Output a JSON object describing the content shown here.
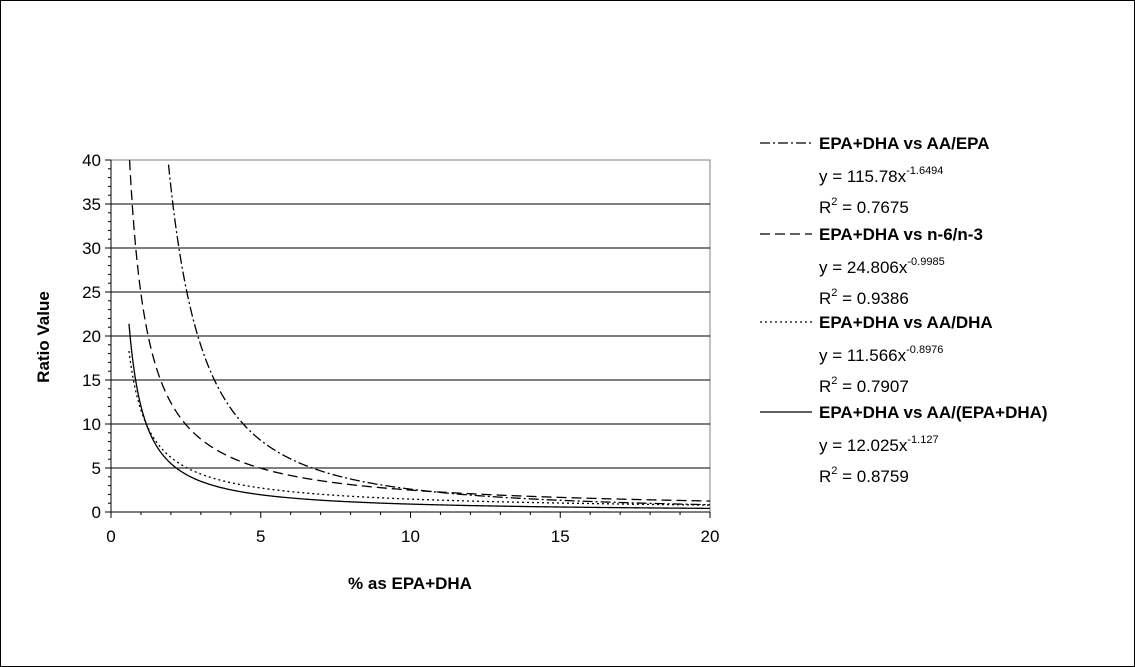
{
  "chart_data": {
    "type": "line",
    "xlabel": "% as EPA+DHA",
    "ylabel": "Ratio Value",
    "xlim": [
      0,
      20
    ],
    "ylim": [
      0,
      40
    ],
    "x_ticks": [
      "0",
      "5",
      "10",
      "15",
      "20"
    ],
    "y_ticks": [
      "0",
      "5",
      "10",
      "15",
      "20",
      "25",
      "30",
      "35",
      "40"
    ],
    "grid": "horizontal",
    "legend_position": "right",
    "series": [
      {
        "name": "EPA+DHA vs AA/EPA",
        "dash": "dash-dot",
        "eq_prefix": "y = 115.78x",
        "eq_exp": "-1.6494",
        "r2_label": "R",
        "r2_exp": "2",
        "r2_value": " = 0.7675",
        "coef": 115.78,
        "exponent": -1.6494,
        "x_start": 1.92
      },
      {
        "name": "EPA+DHA vs n-6/n-3",
        "dash": "dash",
        "eq_prefix": "y = 24.806x",
        "eq_exp": "-0.9985",
        "r2_label": "R",
        "r2_exp": "2",
        "r2_value": " = 0.9386",
        "coef": 24.806,
        "exponent": -0.9985,
        "x_start": 0.62
      },
      {
        "name": "EPA+DHA vs AA/DHA",
        "dash": "dot",
        "eq_prefix": "y = 11.566x",
        "eq_exp": "-0.8976",
        "r2_label": "R",
        "r2_exp": "2",
        "r2_value": " = 0.7907",
        "coef": 11.566,
        "exponent": -0.8976,
        "x_start": 0.6
      },
      {
        "name": "EPA+DHA vs AA/(EPA+DHA)",
        "dash": "solid",
        "eq_prefix": "y = 12.025x",
        "eq_exp": "-1.127",
        "r2_label": "R",
        "r2_exp": "2",
        "r2_value": " = 0.8759",
        "coef": 12.025,
        "exponent": -1.127,
        "x_start": 0.6
      }
    ]
  }
}
